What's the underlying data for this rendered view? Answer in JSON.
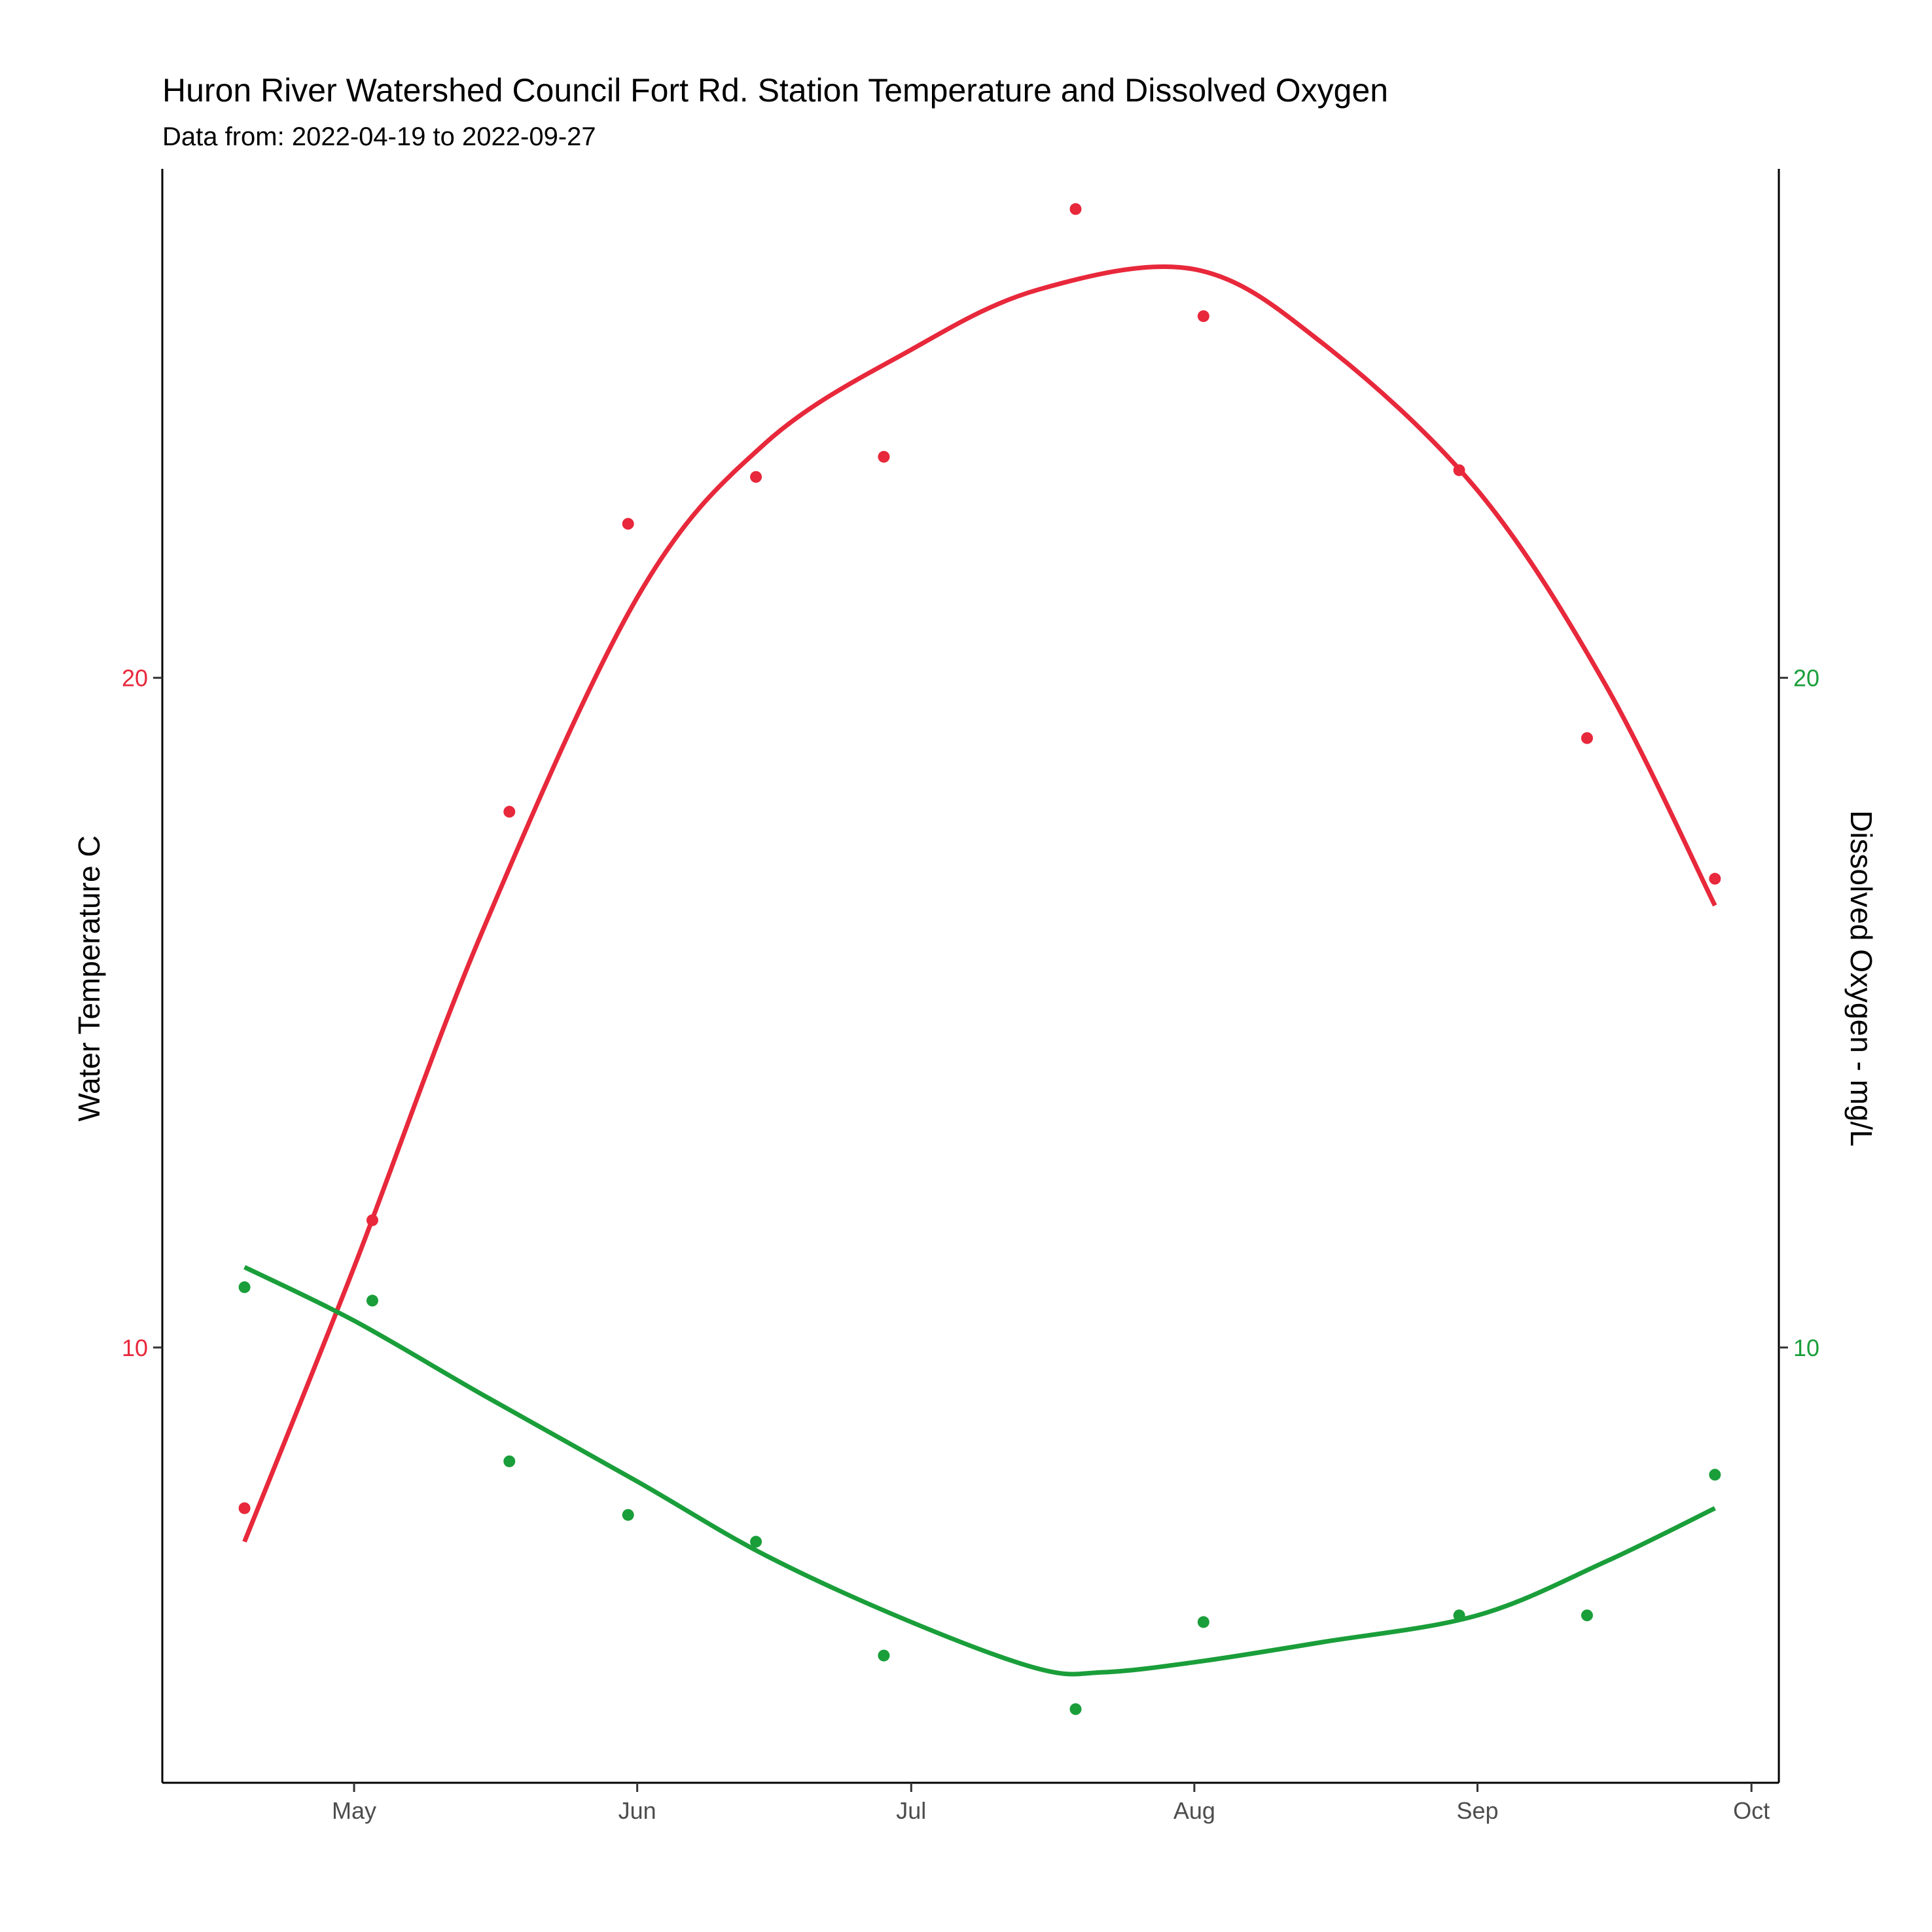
{
  "chart_data": {
    "type": "line",
    "title": "Huron River Watershed Council Fort Rd. Station Temperature and Dissolved Oxygen",
    "subtitle": "Data from: 2022-04-19 to 2022-09-27",
    "ylabel_left": "Water Temperature C",
    "ylabel_right": "Dissolved Oxygen - mg/L",
    "x_date_range": [
      "2022-04-10",
      "2022-10-04"
    ],
    "x_ticks": [
      {
        "date": "2022-05-01",
        "label": "May"
      },
      {
        "date": "2022-06-01",
        "label": "Jun"
      },
      {
        "date": "2022-07-01",
        "label": "Jul"
      },
      {
        "date": "2022-08-01",
        "label": "Aug"
      },
      {
        "date": "2022-09-01",
        "label": "Sep"
      },
      {
        "date": "2022-10-01",
        "label": "Oct"
      }
    ],
    "ylim": [
      3.5,
      27.6
    ],
    "y_ticks_left": [
      10,
      20
    ],
    "y_ticks_right": [
      10,
      20
    ],
    "grid": false,
    "colors": {
      "temperature": "#e8283b",
      "oxygen": "#1a9e3a"
    },
    "series": [
      {
        "key": "temperature",
        "points": [
          {
            "date": "2022-04-19",
            "value": 7.6
          },
          {
            "date": "2022-05-03",
            "value": 11.9
          },
          {
            "date": "2022-05-18",
            "value": 18.0
          },
          {
            "date": "2022-05-31",
            "value": 22.3
          },
          {
            "date": "2022-06-14",
            "value": 23.0
          },
          {
            "date": "2022-06-28",
            "value": 23.3
          },
          {
            "date": "2022-07-19",
            "value": 27.0
          },
          {
            "date": "2022-08-02",
            "value": 25.4
          },
          {
            "date": "2022-08-30",
            "value": 23.1
          },
          {
            "date": "2022-09-13",
            "value": 19.1
          },
          {
            "date": "2022-09-27",
            "value": 17.0
          }
        ],
        "smooth": [
          {
            "date": "2022-04-19",
            "value": 7.1
          },
          {
            "date": "2022-05-01",
            "value": 11.2
          },
          {
            "date": "2022-05-15",
            "value": 16.2
          },
          {
            "date": "2022-06-01",
            "value": 21.2
          },
          {
            "date": "2022-06-15",
            "value": 23.5
          },
          {
            "date": "2022-07-01",
            "value": 24.9
          },
          {
            "date": "2022-07-15",
            "value": 25.8
          },
          {
            "date": "2022-08-01",
            "value": 26.1
          },
          {
            "date": "2022-08-15",
            "value": 25.0
          },
          {
            "date": "2022-09-01",
            "value": 22.8
          },
          {
            "date": "2022-09-15",
            "value": 19.9
          },
          {
            "date": "2022-09-27",
            "value": 16.6
          }
        ]
      },
      {
        "key": "oxygen",
        "points": [
          {
            "date": "2022-04-19",
            "value": 10.9
          },
          {
            "date": "2022-05-03",
            "value": 10.7
          },
          {
            "date": "2022-05-18",
            "value": 8.3
          },
          {
            "date": "2022-05-31",
            "value": 7.5
          },
          {
            "date": "2022-06-14",
            "value": 7.1
          },
          {
            "date": "2022-06-28",
            "value": 5.4
          },
          {
            "date": "2022-07-19",
            "value": 4.6
          },
          {
            "date": "2022-08-02",
            "value": 5.9
          },
          {
            "date": "2022-08-30",
            "value": 6.0
          },
          {
            "date": "2022-09-13",
            "value": 6.0
          },
          {
            "date": "2022-09-27",
            "value": 8.1
          }
        ],
        "smooth": [
          {
            "date": "2022-04-19",
            "value": 11.2
          },
          {
            "date": "2022-05-01",
            "value": 10.4
          },
          {
            "date": "2022-05-15",
            "value": 9.3
          },
          {
            "date": "2022-06-01",
            "value": 8.0
          },
          {
            "date": "2022-06-15",
            "value": 6.9
          },
          {
            "date": "2022-07-01",
            "value": 5.9
          },
          {
            "date": "2022-07-15",
            "value": 5.2
          },
          {
            "date": "2022-07-22",
            "value": 5.15
          },
          {
            "date": "2022-08-01",
            "value": 5.3
          },
          {
            "date": "2022-08-15",
            "value": 5.6
          },
          {
            "date": "2022-09-01",
            "value": 6.0
          },
          {
            "date": "2022-09-15",
            "value": 6.8
          },
          {
            "date": "2022-09-27",
            "value": 7.6
          }
        ]
      }
    ]
  }
}
